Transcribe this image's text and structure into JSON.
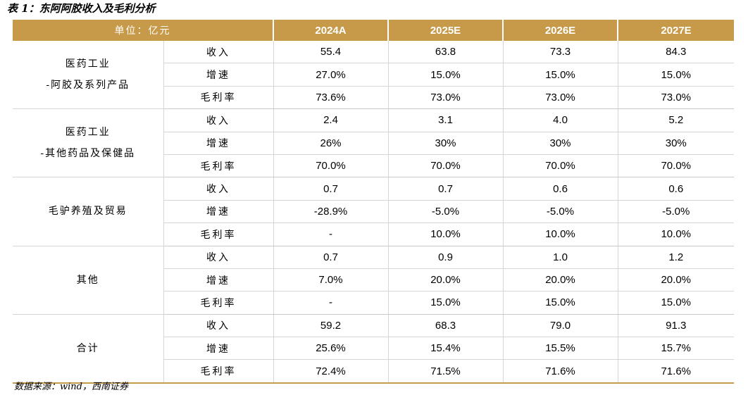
{
  "caption": "表 1：东阿阿胶收入及毛利分析",
  "header": {
    "unit_label": "单位：亿元",
    "years": [
      "2024A",
      "2025E",
      "2026E",
      "2027E"
    ]
  },
  "groups": [
    {
      "name_line1": "医药工业",
      "name_line2": "-阿胶及系列产品",
      "rows": [
        {
          "metric": "收入",
          "values": [
            "55.4",
            "63.8",
            "73.3",
            "84.3"
          ]
        },
        {
          "metric": "增速",
          "values": [
            "27.0%",
            "15.0%",
            "15.0%",
            "15.0%"
          ]
        },
        {
          "metric": "毛利率",
          "values": [
            "73.6%",
            "73.0%",
            "73.0%",
            "73.0%"
          ]
        }
      ]
    },
    {
      "name_line1": "医药工业",
      "name_line2": "-其他药品及保健品",
      "rows": [
        {
          "metric": "收入",
          "values": [
            "2.4",
            "3.1",
            "4.0",
            "5.2"
          ]
        },
        {
          "metric": "增速",
          "values": [
            "26%",
            "30%",
            "30%",
            "30%"
          ]
        },
        {
          "metric": "毛利率",
          "values": [
            "70.0%",
            "70.0%",
            "70.0%",
            "70.0%"
          ]
        }
      ]
    },
    {
      "name_line1": "毛驴养殖及贸易",
      "name_line2": "",
      "rows": [
        {
          "metric": "收入",
          "values": [
            "0.7",
            "0.7",
            "0.6",
            "0.6"
          ]
        },
        {
          "metric": "增速",
          "values": [
            "-28.9%",
            "-5.0%",
            "-5.0%",
            "-5.0%"
          ]
        },
        {
          "metric": "毛利率",
          "values": [
            "-",
            "10.0%",
            "10.0%",
            "10.0%"
          ]
        }
      ]
    },
    {
      "name_line1": "其他",
      "name_line2": "",
      "rows": [
        {
          "metric": "收入",
          "values": [
            "0.7",
            "0.9",
            "1.0",
            "1.2"
          ]
        },
        {
          "metric": "增速",
          "values": [
            "7.0%",
            "20.0%",
            "20.0%",
            "20.0%"
          ]
        },
        {
          "metric": "毛利率",
          "values": [
            "-",
            "15.0%",
            "15.0%",
            "15.0%"
          ]
        }
      ]
    },
    {
      "name_line1": "合计",
      "name_line2": "",
      "rows": [
        {
          "metric": "收入",
          "values": [
            "59.2",
            "68.3",
            "79.0",
            "91.3"
          ]
        },
        {
          "metric": "增速",
          "values": [
            "25.6%",
            "15.4%",
            "15.5%",
            "15.7%"
          ]
        },
        {
          "metric": "毛利率",
          "values": [
            "72.4%",
            "71.5%",
            "71.6%",
            "71.6%"
          ]
        }
      ]
    }
  ],
  "source": "数据来源：wind，西南证券",
  "colors": {
    "header_bg": "#c79a4a",
    "header_text": "#ffffff",
    "grid": "#d6d6d6"
  }
}
